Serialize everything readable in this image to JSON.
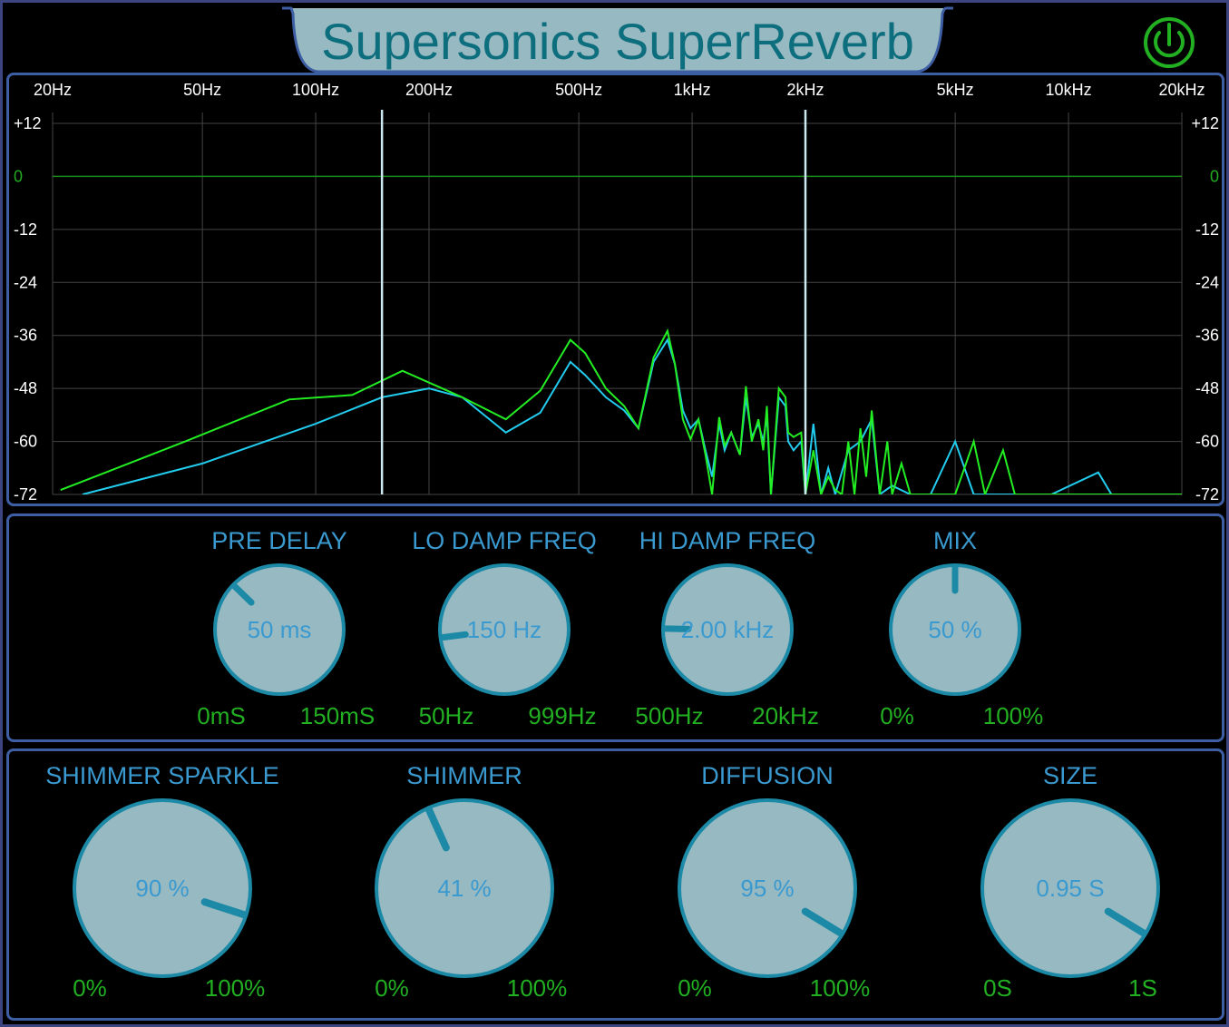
{
  "app": {
    "title": "Supersonics SuperReverb",
    "power_icon": "power-icon",
    "power_color": "#22b022"
  },
  "spectrum": {
    "freq_labels": [
      "20Hz",
      "50Hz",
      "100Hz",
      "200Hz",
      "500Hz",
      "1kHz",
      "2kHz",
      "5kHz",
      "10kHz",
      "20kHz"
    ],
    "freq_values": [
      20,
      50,
      100,
      200,
      500,
      1000,
      2000,
      5000,
      10000,
      20000
    ],
    "db_labels": [
      "+12",
      "0",
      "-12",
      "-24",
      "-36",
      "-48",
      "-60",
      "-72"
    ],
    "db_values": [
      12,
      0,
      -12,
      -24,
      -36,
      -48,
      -60,
      -72
    ],
    "markers_hz": [
      150,
      2000
    ],
    "colors": {
      "grid": "#444",
      "zero": "#1a8a1a",
      "output": "#22ee22",
      "input": "#22ccee",
      "marker": "#cce8f0",
      "label": "#ffffff",
      "zero_label": "#22aa22"
    },
    "series": [
      {
        "color": "#22ee22",
        "points": [
          [
            21,
            -71
          ],
          [
            45,
            -60
          ],
          [
            85,
            -50.5
          ],
          [
            125,
            -49.5
          ],
          [
            170,
            -44
          ],
          [
            245,
            -50
          ],
          [
            320,
            -55
          ],
          [
            395,
            -48.5
          ],
          [
            475,
            -37
          ],
          [
            520,
            -40
          ],
          [
            590,
            -48
          ],
          [
            660,
            -52
          ],
          [
            720,
            -57
          ],
          [
            790,
            -41
          ],
          [
            860,
            -35
          ],
          [
            900,
            -42.5
          ],
          [
            945,
            -55
          ],
          [
            990,
            -59.5
          ],
          [
            1040,
            -55
          ],
          [
            1085,
            -63
          ],
          [
            1130,
            -72
          ],
          [
            1180,
            -54.5
          ],
          [
            1220,
            -61
          ],
          [
            1270,
            -58
          ],
          [
            1340,
            -63
          ],
          [
            1390,
            -47.5
          ],
          [
            1440,
            -60
          ],
          [
            1500,
            -55
          ],
          [
            1545,
            -62
          ],
          [
            1580,
            -52
          ],
          [
            1620,
            -72
          ],
          [
            1700,
            -48
          ],
          [
            1770,
            -50
          ],
          [
            1800,
            -58
          ],
          [
            1860,
            -59
          ],
          [
            1950,
            -58
          ],
          [
            2000,
            -72
          ],
          [
            2100,
            -62
          ],
          [
            2200,
            -72
          ],
          [
            2300,
            -68
          ],
          [
            2400,
            -71
          ],
          [
            2500,
            -72
          ],
          [
            2600,
            -60
          ],
          [
            2700,
            -72
          ],
          [
            2800,
            -57
          ],
          [
            2900,
            -68
          ],
          [
            3000,
            -53
          ],
          [
            3150,
            -72
          ],
          [
            3300,
            -60
          ],
          [
            3400,
            -72
          ],
          [
            3600,
            -65
          ],
          [
            3800,
            -72
          ],
          [
            4000,
            -72
          ],
          [
            4300,
            -72
          ],
          [
            4600,
            -72
          ],
          [
            5000,
            -72
          ],
          [
            5600,
            -60
          ],
          [
            6000,
            -72
          ],
          [
            6700,
            -62
          ],
          [
            7200,
            -72
          ],
          [
            8000,
            -72
          ],
          [
            9000,
            -72
          ],
          [
            10500,
            -72
          ],
          [
            13000,
            -72
          ],
          [
            16000,
            -72
          ],
          [
            20000,
            -72
          ]
        ]
      },
      {
        "color": "#22ccee",
        "points": [
          [
            24,
            -72
          ],
          [
            50,
            -65
          ],
          [
            100,
            -56
          ],
          [
            150,
            -50
          ],
          [
            200,
            -48
          ],
          [
            245,
            -50
          ],
          [
            320,
            -58
          ],
          [
            395,
            -53.5
          ],
          [
            475,
            -42
          ],
          [
            520,
            -45
          ],
          [
            590,
            -50
          ],
          [
            660,
            -53
          ],
          [
            720,
            -57
          ],
          [
            790,
            -42
          ],
          [
            860,
            -37
          ],
          [
            900,
            -42.5
          ],
          [
            945,
            -53
          ],
          [
            990,
            -57
          ],
          [
            1040,
            -55
          ],
          [
            1085,
            -62
          ],
          [
            1130,
            -68
          ],
          [
            1180,
            -56
          ],
          [
            1220,
            -62
          ],
          [
            1270,
            -58
          ],
          [
            1340,
            -63
          ],
          [
            1390,
            -50
          ],
          [
            1440,
            -59
          ],
          [
            1500,
            -56
          ],
          [
            1545,
            -60
          ],
          [
            1580,
            -54
          ],
          [
            1620,
            -72
          ],
          [
            1700,
            -50
          ],
          [
            1770,
            -52
          ],
          [
            1800,
            -60
          ],
          [
            1860,
            -62
          ],
          [
            1950,
            -60
          ],
          [
            2000,
            -72
          ],
          [
            2100,
            -56
          ],
          [
            2200,
            -72
          ],
          [
            2300,
            -66
          ],
          [
            2400,
            -72
          ],
          [
            2600,
            -62
          ],
          [
            2800,
            -60
          ],
          [
            3000,
            -55
          ],
          [
            3150,
            -72
          ],
          [
            3400,
            -70
          ],
          [
            3800,
            -72
          ],
          [
            4300,
            -72
          ],
          [
            5000,
            -60
          ],
          [
            5600,
            -72
          ],
          [
            6700,
            -72
          ],
          [
            9000,
            -72
          ],
          [
            12000,
            -67
          ],
          [
            13000,
            -72
          ],
          [
            20000,
            -72
          ]
        ]
      }
    ]
  },
  "knobs_top": [
    {
      "name": "pre-delay",
      "title": "PRE DELAY",
      "value": "50 ms",
      "min": "0mS",
      "max": "150mS",
      "position": 0.33
    },
    {
      "name": "lo-damp-freq",
      "title": "LO DAMP FREQ",
      "value": "150 Hz",
      "min": "50Hz",
      "max": "999Hz",
      "position": 0.14
    },
    {
      "name": "hi-damp-freq",
      "title": "HI DAMP FREQ",
      "value": "2.00 kHz",
      "min": "500Hz",
      "max": "20kHz",
      "position": 0.17
    },
    {
      "name": "mix",
      "title": "MIX",
      "value": "50 %",
      "min": "0%",
      "max": "100%",
      "position": 0.5
    }
  ],
  "knobs_bottom": [
    {
      "name": "shimmer-sparkle",
      "title": "SHIMMER SPARKLE",
      "value": "90 %",
      "min": "0%",
      "max": "100%",
      "position": 0.9
    },
    {
      "name": "shimmer",
      "title": "SHIMMER",
      "value": "41 %",
      "min": "0%",
      "max": "100%",
      "position": 0.41
    },
    {
      "name": "diffusion",
      "title": "DIFFUSION",
      "value": "95 %",
      "min": "0%",
      "max": "100%",
      "position": 0.95
    },
    {
      "name": "size",
      "title": "SIZE",
      "value": "0.95 S",
      "min": "0S",
      "max": "1S",
      "position": 0.95
    }
  ]
}
